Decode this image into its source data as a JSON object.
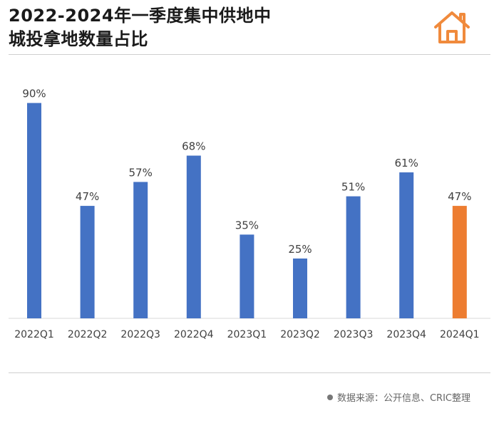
{
  "title": {
    "line1": "2022-2024年一季度集中供地中",
    "line2": "城投拿地数量占比"
  },
  "source_text": "数据来源：公开信息、CRIC整理",
  "colors": {
    "bar": "#4472c4",
    "highlight": "#ed7d31",
    "logo": "#f08a3c"
  },
  "chart_data": {
    "type": "bar",
    "title": "2022-2024年一季度集中供地中城投拿地数量占比",
    "categories": [
      "2022Q1",
      "2022Q2",
      "2022Q3",
      "2022Q4",
      "2023Q1",
      "2023Q2",
      "2023Q3",
      "2023Q4",
      "2024Q1"
    ],
    "values": [
      90,
      47,
      57,
      68,
      35,
      25,
      51,
      61,
      47
    ],
    "labels": [
      "90%",
      "47%",
      "57%",
      "68%",
      "35%",
      "25%",
      "51%",
      "61%",
      "47%"
    ],
    "highlight_index": 8,
    "unit": "%",
    "ylim": [
      0,
      100
    ],
    "xlabel": "",
    "ylabel": "",
    "grid": false
  }
}
